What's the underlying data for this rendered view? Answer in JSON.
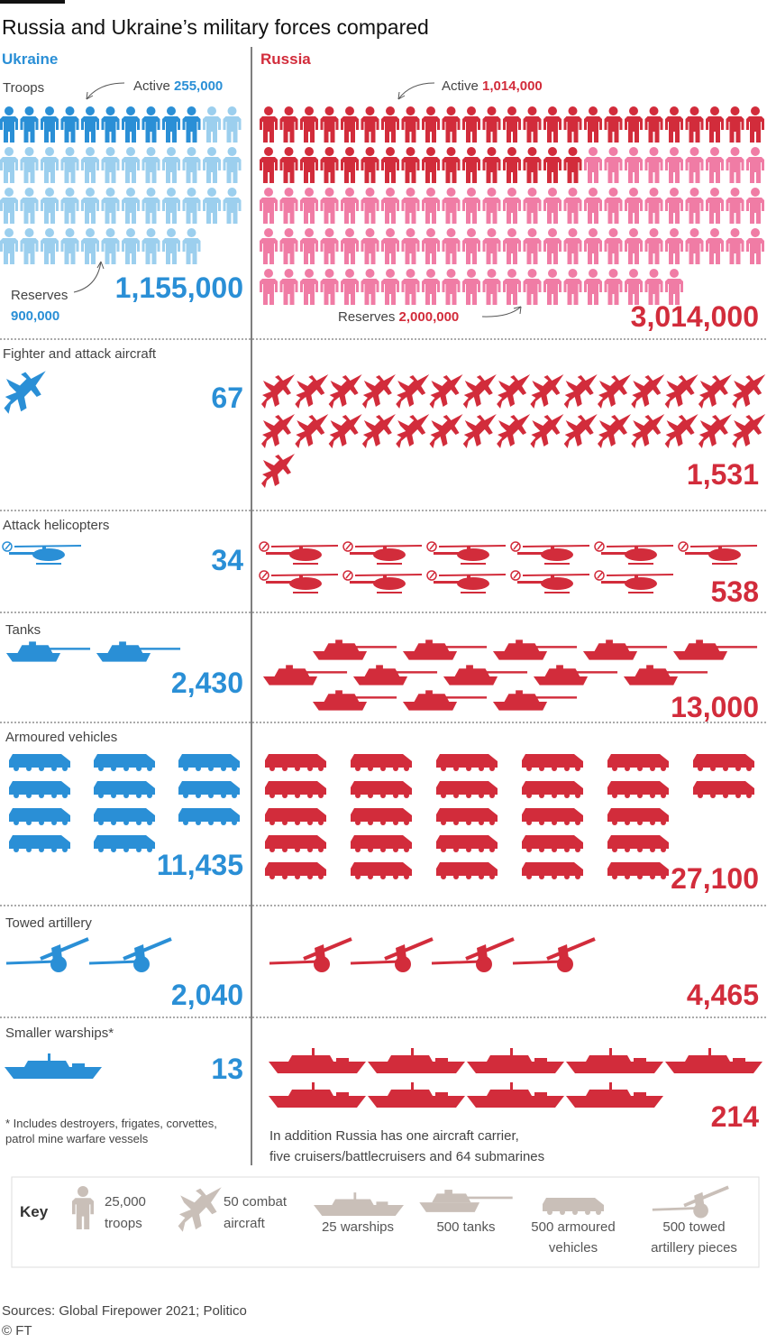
{
  "header": {
    "title": "Russia and Ukraine’s military forces compared"
  },
  "columns": {
    "ukraine": "Ukraine",
    "russia": "Russia"
  },
  "sections": [
    {
      "label": "Troops",
      "ukraine": {
        "total": "1,155,000",
        "active_label": "Active",
        "active": "255,000",
        "reserves_label": "Reserves",
        "reserves": "900,000"
      },
      "russia": {
        "total": "3,014,000",
        "active_label": "Active",
        "active": "1,014,000",
        "reserves_label": "Reserves",
        "reserves": "2,000,000"
      }
    },
    {
      "label": "Fighter and attack aircraft",
      "ukraine": {
        "total": "67"
      },
      "russia": {
        "total": "1,531"
      }
    },
    {
      "label": "Attack helicopters",
      "ukraine": {
        "total": "34"
      },
      "russia": {
        "total": "538"
      }
    },
    {
      "label": "Tanks",
      "ukraine": {
        "total": "2,430"
      },
      "russia": {
        "total": "13,000"
      }
    },
    {
      "label": "Armoured vehicles",
      "ukraine": {
        "total": "11,435"
      },
      "russia": {
        "total": "27,100"
      }
    },
    {
      "label": "Towed artillery",
      "ukraine": {
        "total": "2,040"
      },
      "russia": {
        "total": "4,465"
      }
    },
    {
      "label": "Smaller warships*",
      "ukraine": {
        "total": "13"
      },
      "russia": {
        "total": "214"
      }
    }
  ],
  "notes": {
    "ukraine": [
      "* Includes destroyers, frigates, corvettes,",
      "patrol mine warfare vessels"
    ],
    "russia": [
      "In addition Russia has one aircraft carrier,",
      "five cruisers/battlecruisers and 64 submarines"
    ]
  },
  "key": {
    "title": "Key",
    "items": [
      {
        "lines": [
          "25,000",
          "troops"
        ]
      },
      {
        "lines": [
          "50 combat",
          "aircraft"
        ]
      },
      {
        "lines": [
          "25 warships"
        ]
      },
      {
        "lines": [
          "500 tanks"
        ]
      },
      {
        "lines": [
          "500 armoured",
          "vehicles"
        ]
      },
      {
        "lines": [
          "500 towed",
          "artillery pieces"
        ]
      }
    ]
  },
  "footer": {
    "sources": "Sources: Global Firepower 2021; Politico",
    "copyright": "© FT"
  }
}
